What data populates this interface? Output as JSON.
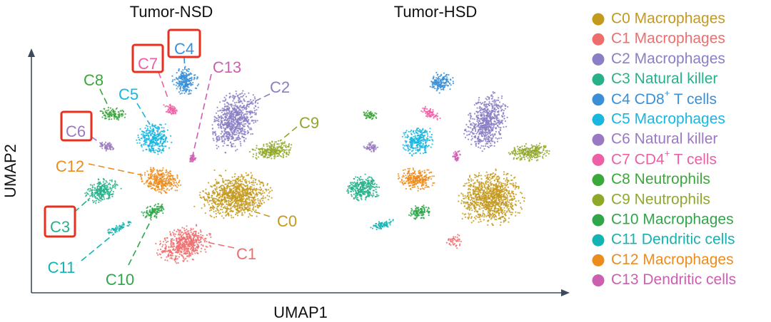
{
  "panels": [
    {
      "id": "nsd",
      "title": "Tumor-NSD"
    },
    {
      "id": "hsd",
      "title": "Tumor-HSD"
    }
  ],
  "axes": {
    "x_label": "UMAP1",
    "y_label": "UMAP2"
  },
  "clusters": [
    {
      "id": "C0",
      "label": "C0",
      "cell_type": "Macrophages",
      "color": "#c49a1d",
      "highlighted": false
    },
    {
      "id": "C1",
      "label": "C1",
      "cell_type": "Macrophages",
      "color": "#ee6e6e",
      "highlighted": false
    },
    {
      "id": "C2",
      "label": "C2",
      "cell_type": "Macrophages",
      "color": "#8a7fc4",
      "highlighted": false
    },
    {
      "id": "C3",
      "label": "C3",
      "cell_type": "Natural killer",
      "color": "#27b08a",
      "highlighted": true
    },
    {
      "id": "C4",
      "label": "C4",
      "cell_type": "CD8+ T cells",
      "color": "#3a8fd6",
      "highlighted": true,
      "prefix": "CD8",
      "sup": "+",
      "suffix": " T cells"
    },
    {
      "id": "C5",
      "label": "C5",
      "cell_type": "Macrophages",
      "color": "#19b6e0",
      "highlighted": false
    },
    {
      "id": "C6",
      "label": "C6",
      "cell_type": "Natural killer",
      "color": "#9b79c2",
      "highlighted": true
    },
    {
      "id": "C7",
      "label": "C7",
      "cell_type": "CD4+ T cells",
      "color": "#ee5fa6",
      "highlighted": true,
      "prefix": "CD4",
      "sup": "+",
      "suffix": " T cells"
    },
    {
      "id": "C8",
      "label": "C8",
      "cell_type": "Neutrophils",
      "color": "#3aa83a",
      "highlighted": false
    },
    {
      "id": "C9",
      "label": "C9",
      "cell_type": "Neutrophils",
      "color": "#8fa82a",
      "highlighted": false
    },
    {
      "id": "C10",
      "label": "C10",
      "cell_type": "Macrophages",
      "color": "#2fa64a",
      "highlighted": false
    },
    {
      "id": "C11",
      "label": "C11",
      "cell_type": "Dendritic cells",
      "color": "#13b3b3",
      "highlighted": false
    },
    {
      "id": "C12",
      "label": "C12",
      "cell_type": "Macrophages",
      "color": "#ec8c1c",
      "highlighted": false
    },
    {
      "id": "C13",
      "label": "C13",
      "cell_type": "Dendritic cells",
      "color": "#cc5fb0",
      "highlighted": false
    }
  ]
}
